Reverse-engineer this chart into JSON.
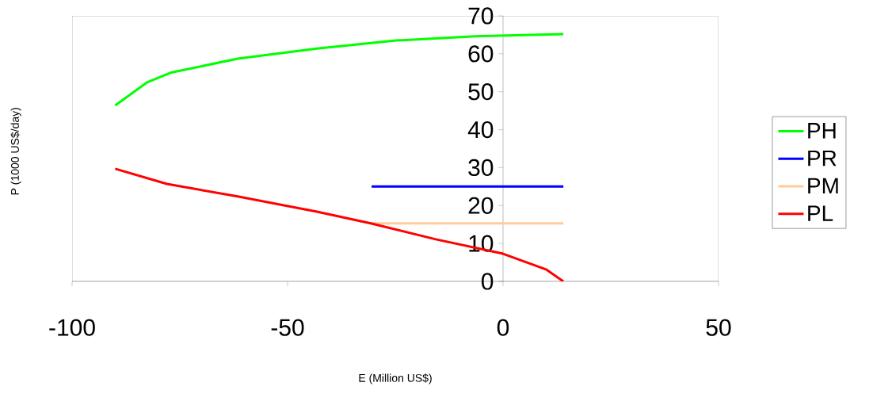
{
  "chart_data": {
    "type": "line",
    "xlabel": "E (Million US$)",
    "ylabel": "P (1000 US$/day)",
    "xlim": [
      -100,
      50
    ],
    "ylim": [
      0,
      70
    ],
    "xticks": [
      -100,
      -50,
      0,
      50
    ],
    "yticks": [
      0,
      10,
      20,
      30,
      40,
      50,
      60,
      70
    ],
    "legend": "right",
    "marker": "none",
    "line_style": "solid",
    "series": [
      {
        "name": "PH",
        "color": "#00ff00",
        "x": [
          -90,
          -82.7,
          -77.2,
          -61.6,
          -43.2,
          -24.8,
          -6.4,
          14
        ],
        "values": [
          46.4,
          52.4,
          55,
          58.7,
          61.4,
          63.5,
          64.6,
          65.2
        ]
      },
      {
        "name": "PR",
        "color": "#0000ff",
        "x": [
          -30.5,
          14
        ],
        "values": [
          25,
          25
        ]
      },
      {
        "name": "PM",
        "color": "#ffcc99",
        "x": [
          -30.5,
          14
        ],
        "values": [
          15.3,
          15.3
        ]
      },
      {
        "name": "PL",
        "color": "#ff0000",
        "x": [
          -90,
          -78,
          -61.6,
          -43.2,
          -30.7,
          -15.6,
          0,
          10.1,
          14
        ],
        "values": [
          29.7,
          25.7,
          22.4,
          18.4,
          15.3,
          11.1,
          7.3,
          3.1,
          0
        ]
      }
    ]
  }
}
